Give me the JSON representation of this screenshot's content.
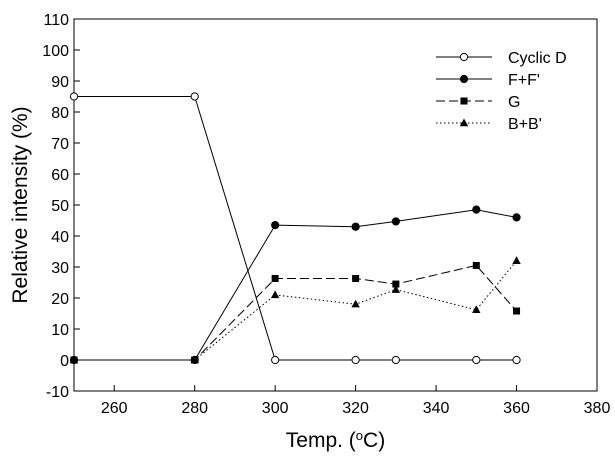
{
  "chart_data": {
    "type": "line",
    "xlabel": "Temp. (",
    "xlabel_sup": "o",
    "xlabel_tail": "C)",
    "ylabel": "Relative intensity (%)",
    "xlim": [
      250,
      380
    ],
    "ylim": [
      -10,
      110
    ],
    "xticks": [
      260,
      280,
      300,
      320,
      340,
      360,
      380
    ],
    "yticks": [
      -10,
      0,
      10,
      20,
      30,
      40,
      50,
      60,
      70,
      80,
      90,
      100,
      110
    ],
    "grid": false,
    "legend_position": "top-right",
    "series": [
      {
        "name": "Cyclic D",
        "marker": "circle-open",
        "line": "solid",
        "points": [
          [
            250,
            85
          ],
          [
            280,
            85
          ],
          [
            300,
            0
          ],
          [
            320,
            0
          ],
          [
            330,
            0
          ],
          [
            350,
            0
          ],
          [
            360,
            0
          ]
        ]
      },
      {
        "name": "F+F'",
        "marker": "circle-filled",
        "line": "solid",
        "points": [
          [
            250,
            0
          ],
          [
            280,
            0
          ],
          [
            300,
            43.5
          ],
          [
            320,
            43
          ],
          [
            330,
            44.7
          ],
          [
            350,
            48.5
          ],
          [
            360,
            46
          ]
        ]
      },
      {
        "name": "G",
        "marker": "square-filled",
        "line": "dashed",
        "points": [
          [
            250,
            0
          ],
          [
            280,
            0
          ],
          [
            300,
            26.3
          ],
          [
            320,
            26.3
          ],
          [
            330,
            24.5
          ],
          [
            350,
            30.5
          ],
          [
            360,
            15.8
          ]
        ]
      },
      {
        "name": "B+B'",
        "marker": "triangle-filled",
        "line": "dotted",
        "points": [
          [
            250,
            0
          ],
          [
            280,
            0
          ],
          [
            300,
            21
          ],
          [
            320,
            18
          ],
          [
            330,
            22.7
          ],
          [
            350,
            16.2
          ],
          [
            360,
            32
          ]
        ]
      }
    ]
  }
}
